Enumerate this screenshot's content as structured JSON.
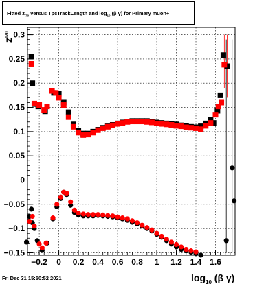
{
  "title": {
    "prefix": "Fitted",
    "z": "z",
    "z_sub": "I70",
    "middle": "versus TpcTrackLength and log",
    "log_sub": "10",
    "tail": "(β γ) for Primary muon+"
  },
  "footer_text": "Fri Dec 31 15:50:52 2021",
  "chart_data": {
    "type": "scatter",
    "title": "Fitted z_I70 versus TpcTrackLength and log10(β γ) for Primary muon+",
    "xlabel": "log10 (β γ)",
    "ylabel": "z_I70",
    "xlim": [
      -0.32,
      1.8
    ],
    "ylim": [
      -0.155,
      0.315
    ],
    "grid": true,
    "x_ticks": [
      -0.2,
      0,
      0.2,
      0.4,
      0.6,
      0.8,
      1,
      1.2,
      1.4,
      1.6
    ],
    "x_tick_labels": [
      "−0.2",
      "0",
      "0.2",
      "0.4",
      "0.6",
      "0.8",
      "1",
      "1.2",
      "1.4",
      "1.6"
    ],
    "y_ticks": [
      -0.15,
      -0.1,
      -0.05,
      0,
      0.05,
      0.1,
      0.15,
      0.2,
      0.25,
      0.3
    ],
    "y_tick_labels": [
      "−0.15",
      "−0.1",
      "−0.05",
      "0",
      "0.05",
      "0.1",
      "0.15",
      "0.2",
      "0.25",
      "0.3"
    ],
    "series": [
      {
        "color": "#000000",
        "marker": "square",
        "points": [
          [
            -0.28,
            0.255
          ],
          [
            -0.27,
            0.2
          ],
          [
            -0.25,
            0.157
          ],
          [
            -0.21,
            0.152
          ],
          [
            -0.14,
            0.142
          ],
          [
            -0.05,
            0.18
          ],
          [
            0.0,
            0.178
          ],
          [
            0.05,
            0.16
          ],
          [
            0.1,
            0.14
          ],
          [
            0.15,
            0.115
          ],
          [
            0.2,
            0.102
          ],
          [
            0.25,
            0.096
          ],
          [
            0.3,
            0.096
          ],
          [
            0.35,
            0.1
          ],
          [
            0.4,
            0.104
          ],
          [
            0.45,
            0.108
          ],
          [
            0.5,
            0.111
          ],
          [
            0.55,
            0.114
          ],
          [
            0.6,
            0.117
          ],
          [
            0.65,
            0.119
          ],
          [
            0.7,
            0.121
          ],
          [
            0.75,
            0.122
          ],
          [
            0.8,
            0.122
          ],
          [
            0.85,
            0.122
          ],
          [
            0.9,
            0.122
          ],
          [
            0.95,
            0.121
          ],
          [
            1.0,
            0.119
          ],
          [
            1.05,
            0.118
          ],
          [
            1.1,
            0.117
          ],
          [
            1.15,
            0.116
          ],
          [
            1.2,
            0.115
          ],
          [
            1.25,
            0.113
          ],
          [
            1.3,
            0.112
          ],
          [
            1.35,
            0.11
          ],
          [
            1.4,
            0.109
          ],
          [
            1.45,
            0.111
          ],
          [
            1.5,
            0.117
          ],
          [
            1.55,
            0.125
          ],
          [
            1.58,
            0.118
          ],
          [
            1.62,
            0.143
          ],
          [
            1.65,
            0.175
          ],
          [
            1.68,
            0.258
          ],
          [
            1.72,
            0.235
          ]
        ]
      },
      {
        "color": "#ff0000",
        "marker": "square",
        "points": [
          [
            -0.28,
            0.24
          ],
          [
            -0.25,
            0.158
          ],
          [
            -0.2,
            0.155
          ],
          [
            -0.15,
            0.145
          ],
          [
            -0.12,
            0.152
          ],
          [
            -0.07,
            0.184
          ],
          [
            -0.03,
            0.18
          ],
          [
            0.0,
            0.17
          ],
          [
            0.05,
            0.155
          ],
          [
            0.1,
            0.13
          ],
          [
            0.15,
            0.11
          ],
          [
            0.2,
            0.098
          ],
          [
            0.25,
            0.093
          ],
          [
            0.3,
            0.094
          ],
          [
            0.35,
            0.098
          ],
          [
            0.4,
            0.103
          ],
          [
            0.45,
            0.107
          ],
          [
            0.5,
            0.11
          ],
          [
            0.55,
            0.113
          ],
          [
            0.6,
            0.116
          ],
          [
            0.65,
            0.118
          ],
          [
            0.7,
            0.12
          ],
          [
            0.75,
            0.121
          ],
          [
            0.8,
            0.121
          ],
          [
            0.85,
            0.121
          ],
          [
            0.9,
            0.12
          ],
          [
            0.95,
            0.119
          ],
          [
            1.0,
            0.117
          ],
          [
            1.05,
            0.116
          ],
          [
            1.1,
            0.115
          ],
          [
            1.15,
            0.114
          ],
          [
            1.2,
            0.112
          ],
          [
            1.25,
            0.111
          ],
          [
            1.3,
            0.109
          ],
          [
            1.35,
            0.108
          ],
          [
            1.4,
            0.107
          ],
          [
            1.45,
            0.105
          ],
          [
            1.5,
            0.112
          ],
          [
            1.55,
            0.118
          ],
          [
            1.6,
            0.135
          ],
          [
            1.63,
            0.152
          ],
          [
            1.66,
            0.16
          ],
          [
            1.69,
            0.238
          ]
        ]
      },
      {
        "color": "#000000",
        "marker": "circle",
        "points": [
          [
            -0.33,
            -0.128
          ],
          [
            -0.3,
            -0.075
          ],
          [
            -0.28,
            -0.06
          ],
          [
            -0.27,
            -0.088
          ],
          [
            -0.25,
            -0.1
          ],
          [
            -0.22,
            -0.125
          ],
          [
            -0.17,
            -0.145
          ],
          [
            -0.12,
            -0.13
          ],
          [
            -0.06,
            -0.08
          ],
          [
            -0.02,
            -0.055
          ],
          [
            0.02,
            -0.038
          ],
          [
            0.05,
            -0.025
          ],
          [
            0.08,
            -0.03
          ],
          [
            0.12,
            -0.052
          ],
          [
            0.16,
            -0.067
          ],
          [
            0.2,
            -0.072
          ],
          [
            0.25,
            -0.074
          ],
          [
            0.3,
            -0.074
          ],
          [
            0.35,
            -0.074
          ],
          [
            0.4,
            -0.073
          ],
          [
            0.45,
            -0.074
          ],
          [
            0.5,
            -0.075
          ],
          [
            0.55,
            -0.076
          ],
          [
            0.6,
            -0.078
          ],
          [
            0.65,
            -0.08
          ],
          [
            0.7,
            -0.083
          ],
          [
            0.75,
            -0.087
          ],
          [
            0.8,
            -0.09
          ],
          [
            0.85,
            -0.095
          ],
          [
            0.9,
            -0.1
          ],
          [
            0.95,
            -0.105
          ],
          [
            1.0,
            -0.112
          ],
          [
            1.05,
            -0.118
          ],
          [
            1.1,
            -0.125
          ],
          [
            1.15,
            -0.132
          ],
          [
            1.2,
            -0.138
          ],
          [
            1.25,
            -0.143
          ],
          [
            1.3,
            -0.146
          ],
          [
            1.35,
            -0.149
          ],
          [
            1.4,
            -0.152
          ],
          [
            1.45,
            -0.155
          ],
          [
            1.71,
            -0.125
          ],
          [
            1.77,
            0.025
          ],
          [
            1.79,
            -0.043
          ]
        ]
      },
      {
        "color": "#ff0000",
        "marker": "circle",
        "points": [
          [
            -0.3,
            -0.085
          ],
          [
            -0.27,
            -0.075
          ],
          [
            -0.25,
            -0.095
          ],
          [
            -0.2,
            -0.132
          ],
          [
            -0.17,
            -0.14
          ],
          [
            -0.13,
            -0.13
          ],
          [
            -0.06,
            -0.078
          ],
          [
            -0.02,
            -0.05
          ],
          [
            0.02,
            -0.035
          ],
          [
            0.05,
            -0.025
          ],
          [
            0.08,
            -0.027
          ],
          [
            0.12,
            -0.045
          ],
          [
            0.16,
            -0.062
          ],
          [
            0.2,
            -0.068
          ],
          [
            0.25,
            -0.07
          ],
          [
            0.3,
            -0.071
          ],
          [
            0.35,
            -0.071
          ],
          [
            0.4,
            -0.071
          ],
          [
            0.45,
            -0.072
          ],
          [
            0.5,
            -0.073
          ],
          [
            0.55,
            -0.074
          ],
          [
            0.6,
            -0.076
          ],
          [
            0.65,
            -0.078
          ],
          [
            0.7,
            -0.08
          ],
          [
            0.75,
            -0.084
          ],
          [
            0.8,
            -0.088
          ],
          [
            0.85,
            -0.093
          ],
          [
            0.9,
            -0.098
          ],
          [
            0.95,
            -0.103
          ],
          [
            1.0,
            -0.11
          ],
          [
            1.05,
            -0.116
          ],
          [
            1.1,
            -0.122
          ],
          [
            1.15,
            -0.128
          ],
          [
            1.2,
            -0.133
          ],
          [
            1.25,
            -0.138
          ],
          [
            1.3,
            -0.143
          ],
          [
            1.35,
            -0.146
          ],
          [
            1.4,
            -0.148
          ]
        ]
      }
    ]
  }
}
